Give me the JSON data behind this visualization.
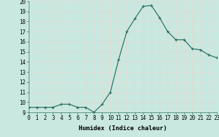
{
  "x": [
    0,
    1,
    2,
    3,
    4,
    5,
    6,
    7,
    8,
    9,
    10,
    11,
    12,
    13,
    14,
    15,
    16,
    17,
    18,
    19,
    20,
    21,
    22,
    23
  ],
  "y": [
    9.5,
    9.5,
    9.5,
    9.5,
    9.8,
    9.8,
    9.5,
    9.5,
    9.0,
    9.8,
    11.0,
    14.2,
    17.0,
    18.3,
    19.5,
    19.6,
    18.4,
    17.0,
    16.2,
    16.2,
    15.3,
    15.2,
    14.7,
    14.4
  ],
  "xlabel": "Humidex (Indice chaleur)",
  "ylim": [
    9,
    20
  ],
  "xlim": [
    0,
    23
  ],
  "yticks": [
    9,
    10,
    11,
    12,
    13,
    14,
    15,
    16,
    17,
    18,
    19,
    20
  ],
  "xticks": [
    0,
    1,
    2,
    3,
    4,
    5,
    6,
    7,
    8,
    9,
    10,
    11,
    12,
    13,
    14,
    15,
    16,
    17,
    18,
    19,
    20,
    21,
    22,
    23
  ],
  "line_color": "#2d6e62",
  "bg_color": "#c8e8e0",
  "grid_color": "#e8d8d0",
  "tick_fontsize": 5.5,
  "xlabel_fontsize": 6.5
}
